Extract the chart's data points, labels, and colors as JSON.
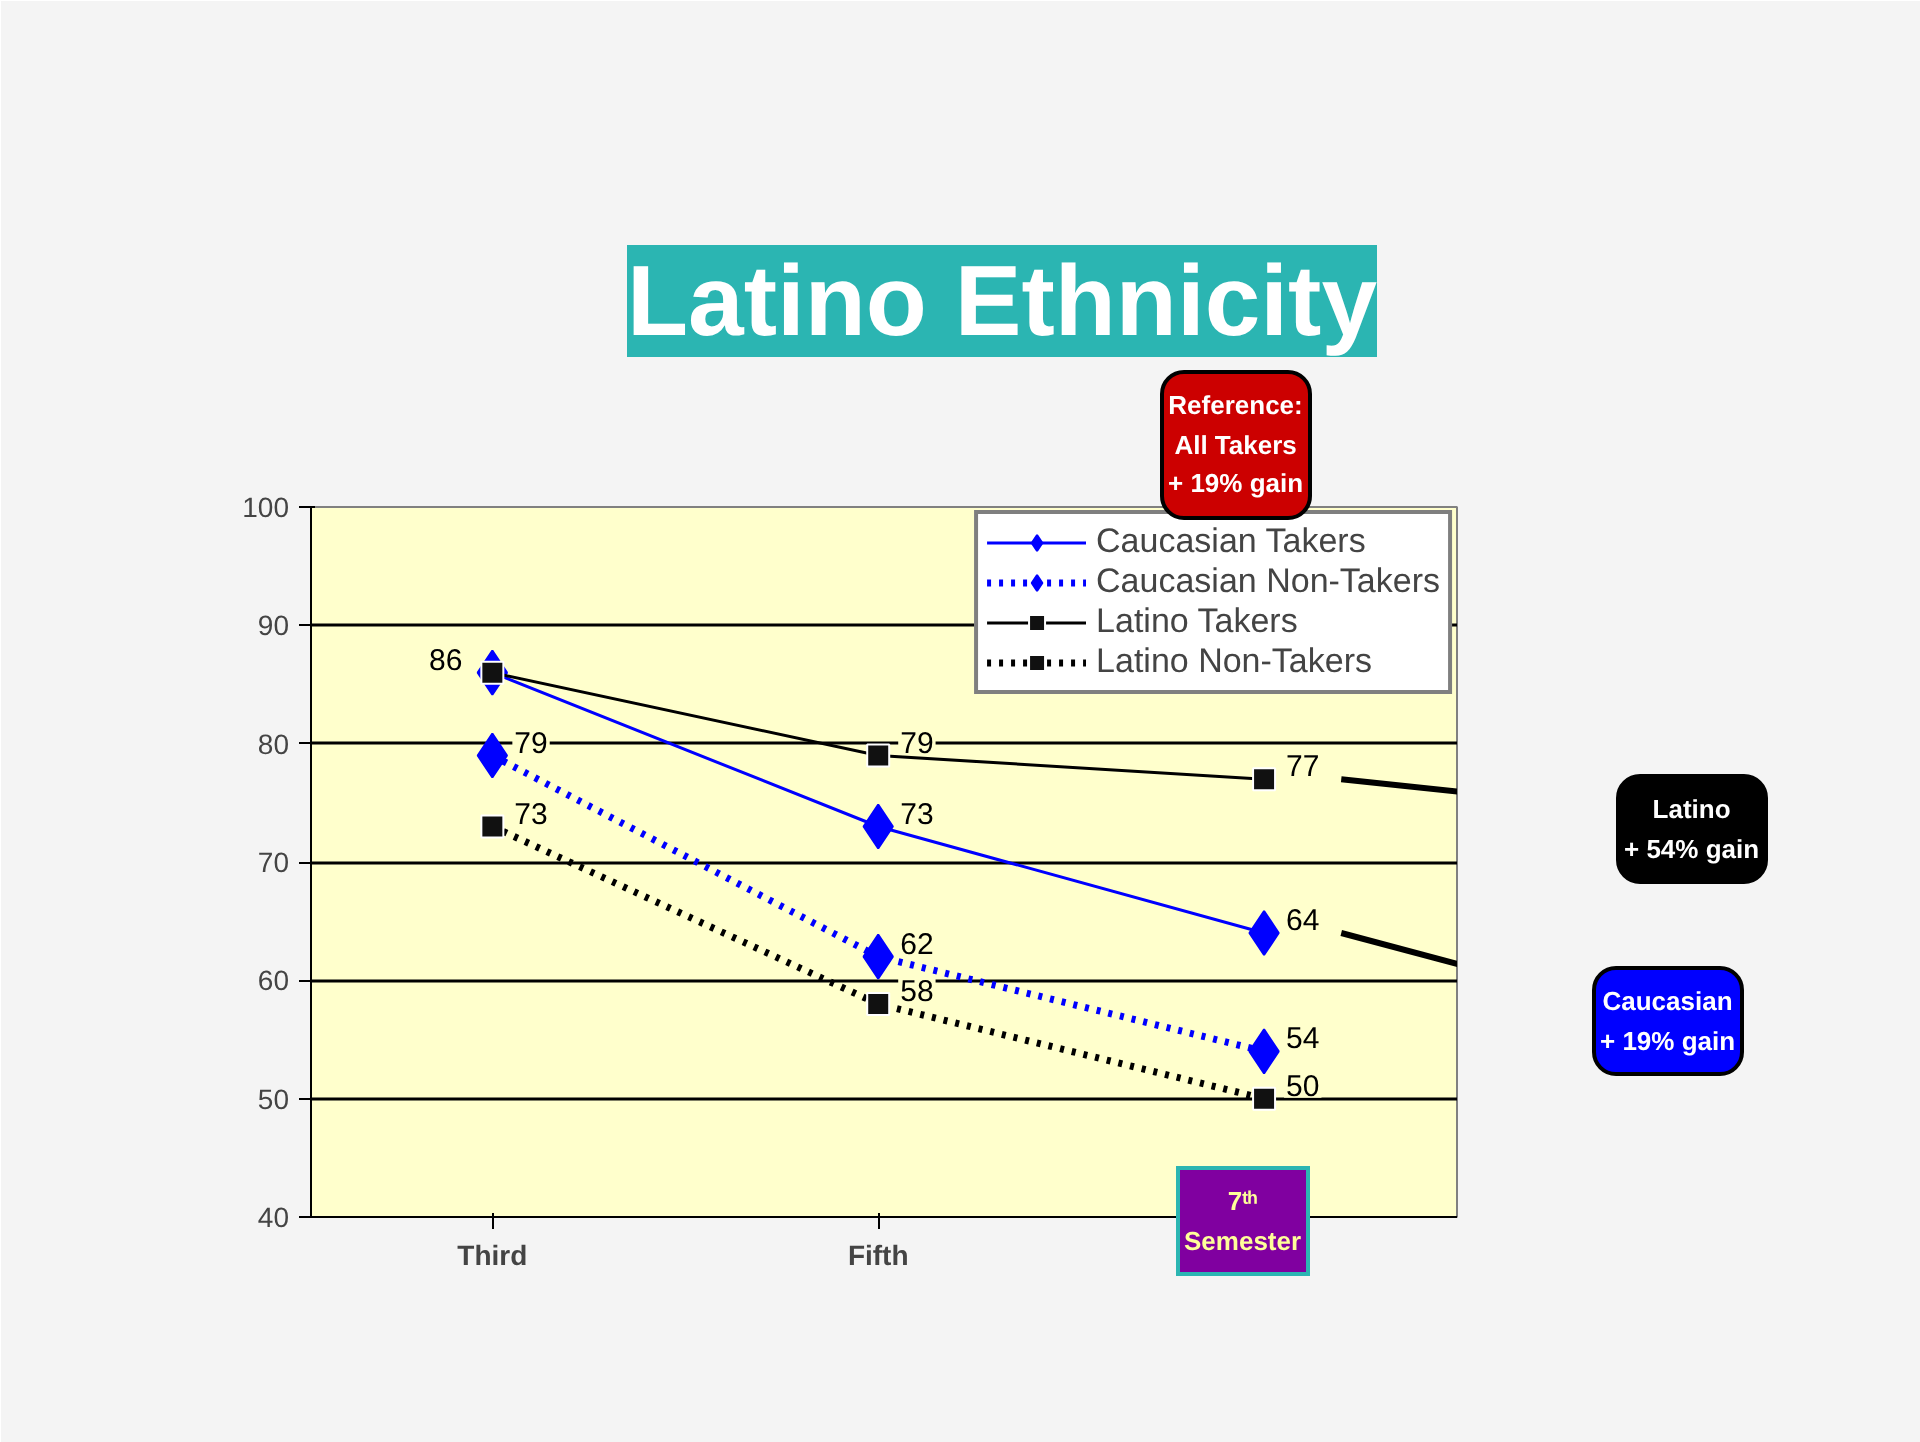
{
  "chart_data": {
    "type": "line",
    "title": "Latino Ethnicity",
    "categories": [
      "Third",
      "Fifth",
      null
    ],
    "series": [
      {
        "name": "Caucasian Takers",
        "color": "#0000ff",
        "values": [
          86,
          73,
          64
        ],
        "marker": "diamond",
        "line_style": "solid",
        "value_labels": [
          null,
          "73",
          "64"
        ]
      },
      {
        "name": "Caucasian Non-Takers",
        "color": "#0000ff",
        "values": [
          79,
          62,
          54
        ],
        "marker": "diamond",
        "line_style": "dotted",
        "value_labels": [
          "79",
          "62",
          "54"
        ]
      },
      {
        "name": "Latino Takers",
        "color": "#000000",
        "values": [
          86,
          79,
          77
        ],
        "marker": "square",
        "line_style": "solid",
        "value_labels": [
          "86",
          "79",
          "77"
        ]
      },
      {
        "name": "Latino Non-Takers",
        "color": "#000000",
        "values": [
          73,
          58,
          50
        ],
        "marker": "square",
        "line_style": "dotted",
        "value_labels": [
          "73",
          "58",
          "50"
        ]
      }
    ],
    "ylim": [
      40,
      100
    ],
    "yticks": [
      40,
      50,
      60,
      70,
      80,
      90,
      100
    ],
    "grid": "y",
    "legend": "top right",
    "annotations": [
      "Reference:\nAll Takers\n+ 19% gain",
      "Latino\n+ 54% gain",
      "Caucasian\n+ 19% gain",
      "7ᵗʰ\nSemester"
    ]
  }
}
